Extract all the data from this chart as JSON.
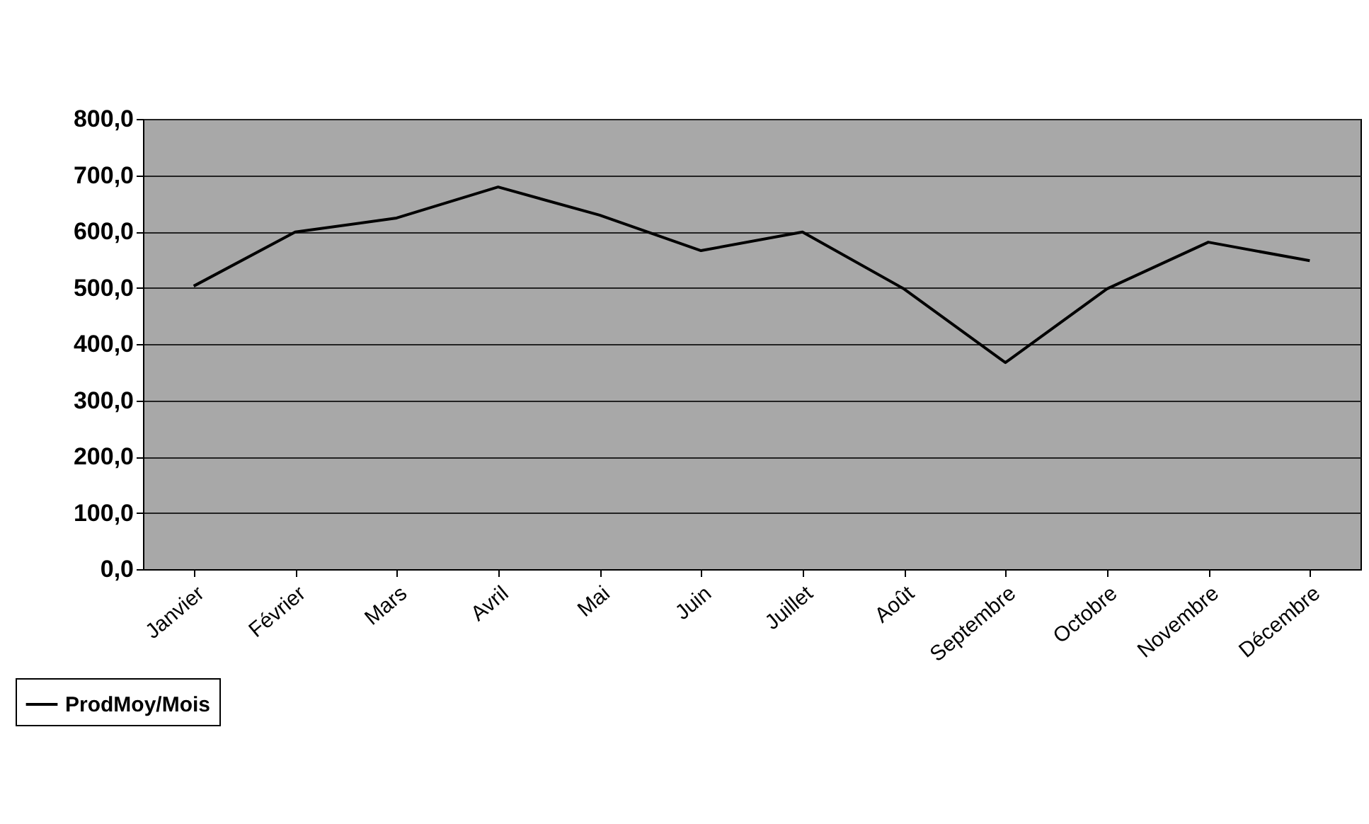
{
  "chart_data": {
    "type": "line",
    "categories": [
      "Janvier",
      "Février",
      "Mars",
      "Avril",
      "Mai",
      "Juin",
      "Juillet",
      "Août",
      "Septembre",
      "Octobre",
      "Novembre",
      "Décembre"
    ],
    "series": [
      {
        "name": "ProdMoy/Mois",
        "color": "#000000",
        "values": [
          503,
          599,
          624,
          679,
          629,
          566,
          599,
          498,
          367,
          498,
          581,
          548
        ]
      }
    ],
    "ylim": [
      0,
      800
    ],
    "yticks": [
      {
        "value": 0,
        "label": "0,0"
      },
      {
        "value": 100,
        "label": "100,0"
      },
      {
        "value": 200,
        "label": "200,0"
      },
      {
        "value": 300,
        "label": "300,0"
      },
      {
        "value": 400,
        "label": "400,0"
      },
      {
        "value": 500,
        "label": "500,0"
      },
      {
        "value": 600,
        "label": "600,0"
      },
      {
        "value": 700,
        "label": "700,0"
      },
      {
        "value": 800,
        "label": "800,0"
      }
    ],
    "grid": "y",
    "legend": "bottom left",
    "marker": "none",
    "line_style": "solid"
  }
}
